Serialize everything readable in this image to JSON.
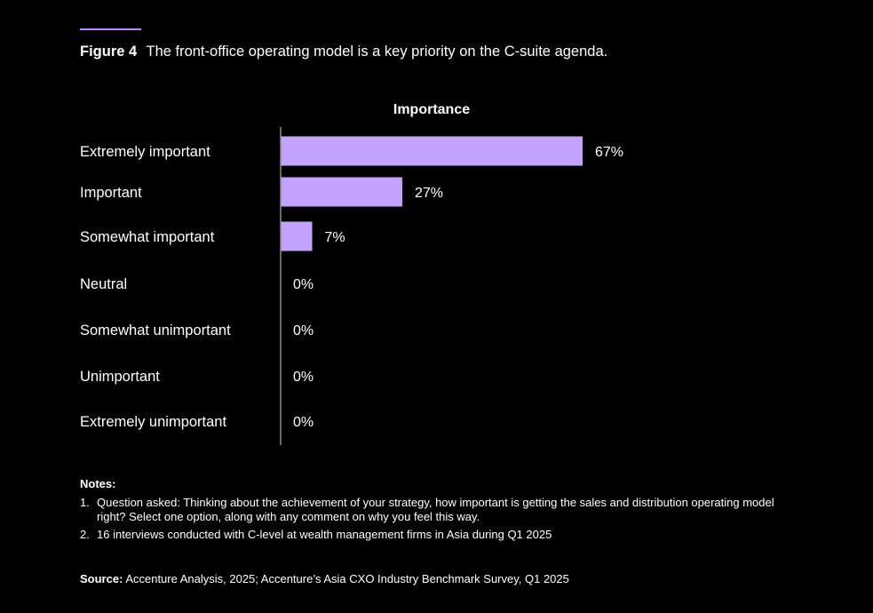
{
  "figure": {
    "label": "Figure 4",
    "title": "The front-office operating model is a key priority on the C-suite agenda."
  },
  "colors": {
    "accent": "#b38aff",
    "bar": "#c3a3ff",
    "axis": "#8c8c8c",
    "background": "#000000",
    "text": "#ffffff"
  },
  "chart_data": {
    "type": "bar",
    "orientation": "horizontal",
    "title": "Importance",
    "xlabel": "",
    "ylabel": "",
    "xlim": [
      0,
      100
    ],
    "grid": false,
    "categories": [
      "Extremely important",
      "Important",
      "Somewhat important",
      "Neutral",
      "Somewhat unimportant",
      "Unimportant",
      "Extremely unimportant"
    ],
    "values": [
      67,
      27,
      7,
      0,
      0,
      0,
      0
    ],
    "value_labels": [
      "67%",
      "27%",
      "7%",
      "0%",
      "0%",
      "0%",
      "0%"
    ]
  },
  "notes": {
    "heading": "Notes:",
    "items": [
      {
        "number": "1.",
        "text": "Question asked: Thinking about the achievement of your strategy, how important is getting the sales and distribution operating model right? Select one option, along with any comment on why you feel this way."
      },
      {
        "number": "2.",
        "text": "16 interviews conducted with C-level at wealth management firms in Asia during Q1 2025"
      }
    ]
  },
  "source": {
    "label": "Source:",
    "text": "Accenture Analysis, 2025; Accenture’s Asia CXO Industry Benchmark Survey, Q1 2025"
  }
}
